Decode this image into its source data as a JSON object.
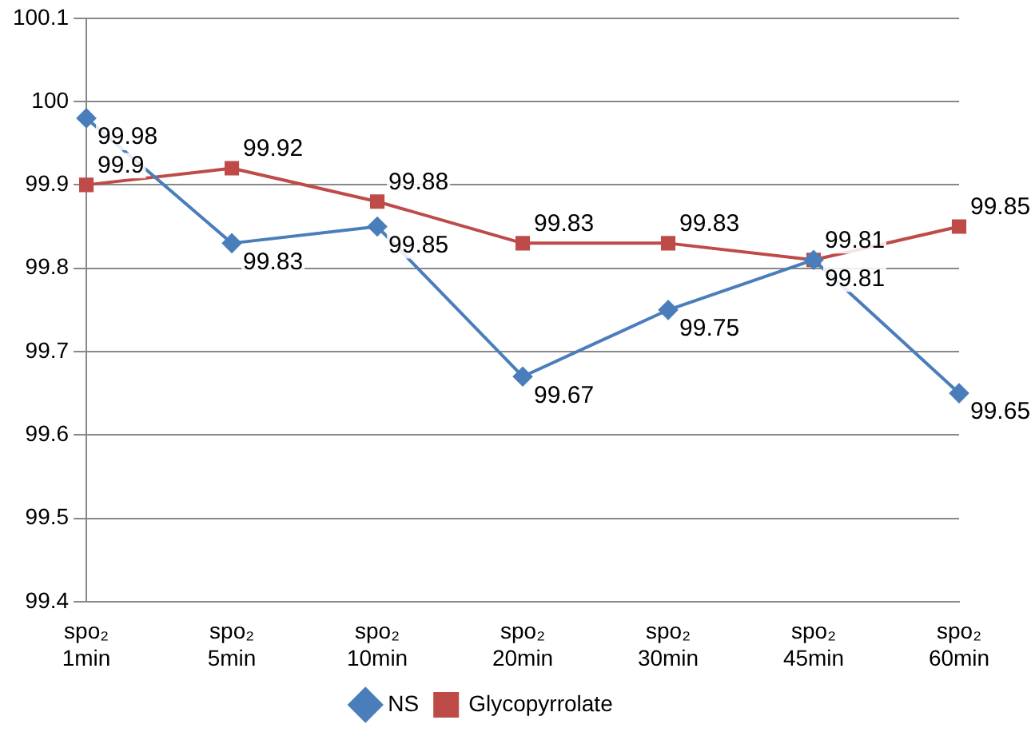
{
  "chart_data": {
    "type": "line",
    "categories": [
      "spo₂\n1min",
      "spo₂\n5min",
      "spo₂\n10min",
      "spo₂\n20min",
      "spo₂\n30min",
      "spo₂\n45min",
      "spo₂\n60min"
    ],
    "series": [
      {
        "name": "NS",
        "color": "#4a7ebb",
        "marker": "diamond",
        "values": [
          99.98,
          99.83,
          99.85,
          99.67,
          99.75,
          99.81,
          99.65
        ]
      },
      {
        "name": "Glycopyrrolate",
        "color": "#be4b48",
        "marker": "square",
        "values": [
          99.9,
          99.92,
          99.88,
          99.83,
          99.83,
          99.81,
          99.85
        ]
      }
    ],
    "ylim": [
      99.4,
      100.1
    ],
    "yticks": [
      99.4,
      99.5,
      99.6,
      99.7,
      99.8,
      99.9,
      100,
      100.1
    ],
    "grid": "y",
    "legend": "bottom",
    "data_labels": true
  }
}
